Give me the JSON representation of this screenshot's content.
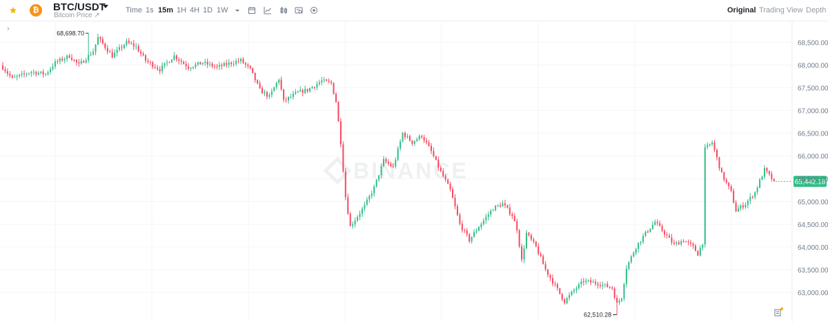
{
  "header": {
    "pair": "BTC/USDT",
    "subtitle": "Bitcoin Price ↗",
    "coin_symbol": "₿",
    "timeframes": [
      "Time",
      "1s",
      "15m",
      "1H",
      "4H",
      "1D",
      "1W"
    ],
    "active_timeframe": "15m",
    "views": [
      "Original",
      "Trading View",
      "Depth"
    ],
    "active_view": "Original"
  },
  "colors": {
    "up": "#2ebd85",
    "down": "#f6465d",
    "accent": "#f0b90b",
    "price_tag": "#2ebd85"
  },
  "chart_data": {
    "type": "candlestick",
    "symbol": "BTC/USDT",
    "interval": "15m",
    "ylim": [
      62350,
      68960
    ],
    "y_ticks": [
      "68,500.00",
      "68,000.00",
      "67,500.00",
      "67,000.00",
      "66,500.00",
      "66,000.00",
      "65,500.00",
      "65,000.00",
      "64,500.00",
      "64,000.00",
      "63,500.00",
      "63,000.00"
    ],
    "y_tick_values": [
      68500,
      68000,
      67500,
      67000,
      66500,
      66000,
      65500,
      65000,
      64500,
      64000,
      63500,
      63000
    ],
    "last_price": 65442.18,
    "last_price_label": "65,442.18",
    "high_label": "68,698.70",
    "high_value": 68698.7,
    "low_label": "62,510.28",
    "low_value": 62510.28,
    "watermark": "BINANCE",
    "close_path": [
      [
        0,
        67950
      ],
      [
        4,
        67700
      ],
      [
        12,
        67850
      ],
      [
        18,
        67800
      ],
      [
        22,
        68050
      ],
      [
        28,
        68200
      ],
      [
        32,
        68000
      ],
      [
        38,
        68300
      ],
      [
        40,
        68600
      ],
      [
        46,
        68200
      ],
      [
        52,
        68500
      ],
      [
        56,
        68400
      ],
      [
        60,
        68100
      ],
      [
        66,
        67900
      ],
      [
        72,
        68200
      ],
      [
        78,
        67950
      ],
      [
        84,
        68050
      ],
      [
        90,
        67950
      ],
      [
        96,
        68050
      ],
      [
        100,
        68100
      ],
      [
        104,
        67900
      ],
      [
        108,
        67450
      ],
      [
        112,
        67300
      ],
      [
        116,
        67700
      ],
      [
        118,
        67200
      ],
      [
        124,
        67400
      ],
      [
        128,
        67450
      ],
      [
        134,
        67650
      ],
      [
        138,
        67600
      ],
      [
        140,
        67200
      ],
      [
        142,
        66300
      ],
      [
        144,
        65100
      ],
      [
        146,
        64450
      ],
      [
        152,
        64900
      ],
      [
        156,
        65300
      ],
      [
        160,
        65900
      ],
      [
        164,
        65750
      ],
      [
        168,
        66500
      ],
      [
        172,
        66300
      ],
      [
        176,
        66450
      ],
      [
        180,
        66100
      ],
      [
        184,
        65650
      ],
      [
        188,
        65250
      ],
      [
        192,
        64500
      ],
      [
        196,
        64150
      ],
      [
        200,
        64450
      ],
      [
        206,
        64850
      ],
      [
        210,
        64950
      ],
      [
        214,
        64700
      ],
      [
        216,
        64400
      ],
      [
        218,
        63700
      ],
      [
        220,
        64300
      ],
      [
        224,
        64000
      ],
      [
        228,
        63500
      ],
      [
        232,
        63150
      ],
      [
        236,
        62800
      ],
      [
        240,
        63050
      ],
      [
        244,
        63250
      ],
      [
        250,
        63200
      ],
      [
        256,
        63100
      ],
      [
        258,
        62750
      ],
      [
        260,
        62900
      ],
      [
        262,
        63550
      ],
      [
        266,
        64000
      ],
      [
        270,
        64300
      ],
      [
        274,
        64550
      ],
      [
        278,
        64300
      ],
      [
        282,
        64050
      ],
      [
        286,
        64150
      ],
      [
        290,
        64000
      ],
      [
        292,
        63850
      ],
      [
        294,
        64100
      ],
      [
        295,
        66150
      ],
      [
        298,
        66300
      ],
      [
        302,
        65600
      ],
      [
        306,
        65200
      ],
      [
        308,
        64800
      ],
      [
        312,
        64950
      ],
      [
        316,
        65200
      ],
      [
        320,
        65700
      ],
      [
        324,
        65442
      ]
    ]
  }
}
